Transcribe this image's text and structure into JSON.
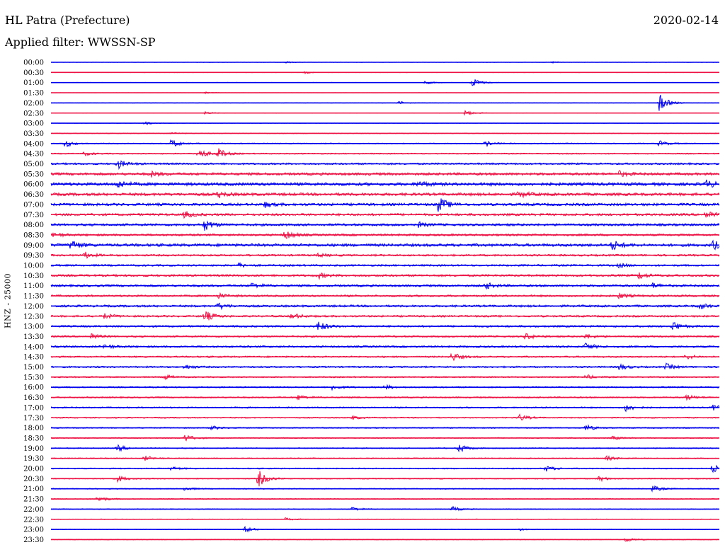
{
  "header": {
    "station": "HL Patra (Prefecture)",
    "date": "2020-02-14",
    "filter_label": "Applied filter:",
    "filter_name": "WWSSN-SP",
    "channel_label": "HNZ - 25000"
  },
  "colors": {
    "trace_a": "#0000ee",
    "trace_b": "#ee1144",
    "background": "#ffffff",
    "text": "#000000"
  },
  "chart_data": {
    "type": "line",
    "title": "HL Patra (Prefecture)",
    "subtitle": "Applied filter: WWSSN-SP",
    "ylabel": "HNZ - 25000",
    "xlabel": "",
    "rows": [
      {
        "label": "00:00",
        "color": "trace_a",
        "level": 0.15,
        "events": [
          {
            "t": 0.35,
            "a": 0.3
          },
          {
            "t": 0.75,
            "a": 0.3
          }
        ]
      },
      {
        "label": "00:30",
        "color": "trace_b",
        "level": 0.2,
        "events": [
          {
            "t": 0.38,
            "a": 0.3
          }
        ]
      },
      {
        "label": "01:00",
        "color": "trace_a",
        "level": 0.2,
        "events": [
          {
            "t": 0.56,
            "a": 0.5
          },
          {
            "t": 0.63,
            "a": 1.6
          }
        ]
      },
      {
        "label": "01:30",
        "color": "trace_b",
        "level": 0.12,
        "events": [
          {
            "t": 0.23,
            "a": 0.3
          }
        ]
      },
      {
        "label": "02:00",
        "color": "trace_a",
        "level": 0.2,
        "events": [
          {
            "t": 0.52,
            "a": 0.5
          },
          {
            "t": 0.91,
            "a": 3.0
          }
        ]
      },
      {
        "label": "02:30",
        "color": "trace_b",
        "level": 0.2,
        "events": [
          {
            "t": 0.23,
            "a": 0.4
          },
          {
            "t": 0.62,
            "a": 0.8
          }
        ]
      },
      {
        "label": "03:00",
        "color": "trace_a",
        "level": 0.15,
        "events": [
          {
            "t": 0.14,
            "a": 0.6
          }
        ]
      },
      {
        "label": "03:30",
        "color": "trace_b",
        "level": 0.3,
        "events": [
          {
            "t": 0.18,
            "a": 0.3
          }
        ]
      },
      {
        "label": "04:00",
        "color": "trace_a",
        "level": 0.45,
        "events": [
          {
            "t": 0.02,
            "a": 1.2
          },
          {
            "t": 0.18,
            "a": 1.4
          },
          {
            "t": 0.65,
            "a": 0.8
          },
          {
            "t": 0.91,
            "a": 0.9
          }
        ]
      },
      {
        "label": "04:30",
        "color": "trace_b",
        "level": 0.5,
        "events": [
          {
            "t": 0.22,
            "a": 1.8
          },
          {
            "t": 0.25,
            "a": 1.6
          },
          {
            "t": 0.05,
            "a": 0.6
          }
        ]
      },
      {
        "label": "05:00",
        "color": "trace_a",
        "level": 0.8,
        "events": [
          {
            "t": 0.1,
            "a": 1.4
          }
        ]
      },
      {
        "label": "05:30",
        "color": "trace_b",
        "level": 1.1,
        "events": [
          {
            "t": 0.15,
            "a": 0.8
          },
          {
            "t": 0.85,
            "a": 0.8
          }
        ]
      },
      {
        "label": "06:00",
        "color": "trace_a",
        "level": 1.3,
        "events": [
          {
            "t": 0.1,
            "a": 1.2
          },
          {
            "t": 0.55,
            "a": 0.9
          },
          {
            "t": 0.98,
            "a": 1.2
          }
        ]
      },
      {
        "label": "06:30",
        "color": "trace_b",
        "level": 1.2,
        "events": [
          {
            "t": 0.25,
            "a": 1.0
          },
          {
            "t": 0.7,
            "a": 0.9
          }
        ]
      },
      {
        "label": "07:00",
        "color": "trace_a",
        "level": 1.1,
        "events": [
          {
            "t": 0.58,
            "a": 2.5
          },
          {
            "t": 0.32,
            "a": 0.8
          }
        ]
      },
      {
        "label": "07:30",
        "color": "trace_b",
        "level": 1.0,
        "events": [
          {
            "t": 0.2,
            "a": 1.0
          },
          {
            "t": 0.98,
            "a": 1.4
          }
        ]
      },
      {
        "label": "08:00",
        "color": "trace_a",
        "level": 1.0,
        "events": [
          {
            "t": 0.23,
            "a": 1.8
          },
          {
            "t": 0.55,
            "a": 0.7
          }
        ]
      },
      {
        "label": "08:30",
        "color": "trace_b",
        "level": 0.9,
        "events": [
          {
            "t": 0.35,
            "a": 1.4
          },
          {
            "t": 0.0,
            "a": 1.0
          }
        ]
      },
      {
        "label": "09:00",
        "color": "trace_a",
        "level": 1.2,
        "events": [
          {
            "t": 0.03,
            "a": 1.6
          },
          {
            "t": 0.84,
            "a": 1.6
          },
          {
            "t": 0.99,
            "a": 1.4
          }
        ]
      },
      {
        "label": "09:30",
        "color": "trace_b",
        "level": 0.8,
        "events": [
          {
            "t": 0.05,
            "a": 1.0
          },
          {
            "t": 0.4,
            "a": 0.5
          }
        ]
      },
      {
        "label": "10:00",
        "color": "trace_a",
        "level": 0.8,
        "events": [
          {
            "t": 0.28,
            "a": 0.6
          },
          {
            "t": 0.85,
            "a": 0.6
          }
        ]
      },
      {
        "label": "10:30",
        "color": "trace_b",
        "level": 0.9,
        "events": [
          {
            "t": 0.4,
            "a": 0.8
          },
          {
            "t": 0.88,
            "a": 1.0
          }
        ]
      },
      {
        "label": "11:00",
        "color": "trace_a",
        "level": 0.9,
        "events": [
          {
            "t": 0.3,
            "a": 0.9
          },
          {
            "t": 0.65,
            "a": 1.0
          },
          {
            "t": 0.9,
            "a": 0.8
          }
        ]
      },
      {
        "label": "11:30",
        "color": "trace_b",
        "level": 0.8,
        "events": [
          {
            "t": 0.25,
            "a": 0.8
          },
          {
            "t": 0.85,
            "a": 0.8
          }
        ]
      },
      {
        "label": "12:00",
        "color": "trace_a",
        "level": 0.9,
        "events": [
          {
            "t": 0.25,
            "a": 1.0
          },
          {
            "t": 0.97,
            "a": 1.0
          }
        ]
      },
      {
        "label": "12:30",
        "color": "trace_b",
        "level": 0.8,
        "events": [
          {
            "t": 0.23,
            "a": 1.8
          },
          {
            "t": 0.36,
            "a": 1.0
          },
          {
            "t": 0.08,
            "a": 0.8
          }
        ]
      },
      {
        "label": "13:00",
        "color": "trace_a",
        "level": 0.8,
        "events": [
          {
            "t": 0.4,
            "a": 1.6
          },
          {
            "t": 0.93,
            "a": 1.6
          }
        ]
      },
      {
        "label": "13:30",
        "color": "trace_b",
        "level": 0.7,
        "events": [
          {
            "t": 0.06,
            "a": 1.0
          },
          {
            "t": 0.71,
            "a": 1.0
          },
          {
            "t": 0.8,
            "a": 0.8
          }
        ]
      },
      {
        "label": "14:00",
        "color": "trace_a",
        "level": 0.8,
        "events": [
          {
            "t": 0.08,
            "a": 0.8
          },
          {
            "t": 0.8,
            "a": 1.1
          }
        ]
      },
      {
        "label": "14:30",
        "color": "trace_b",
        "level": 0.7,
        "events": [
          {
            "t": 0.6,
            "a": 1.4
          },
          {
            "t": 0.95,
            "a": 0.8
          }
        ]
      },
      {
        "label": "15:00",
        "color": "trace_a",
        "level": 0.7,
        "events": [
          {
            "t": 0.2,
            "a": 0.8
          },
          {
            "t": 0.85,
            "a": 1.0
          },
          {
            "t": 0.92,
            "a": 1.0
          }
        ]
      },
      {
        "label": "15:30",
        "color": "trace_b",
        "level": 0.6,
        "events": [
          {
            "t": 0.17,
            "a": 0.8
          },
          {
            "t": 0.8,
            "a": 0.7
          }
        ]
      },
      {
        "label": "16:00",
        "color": "trace_a",
        "level": 0.6,
        "events": [
          {
            "t": 0.42,
            "a": 0.8
          },
          {
            "t": 0.5,
            "a": 0.7
          }
        ]
      },
      {
        "label": "16:30",
        "color": "trace_b",
        "level": 0.6,
        "events": [
          {
            "t": 0.37,
            "a": 0.8
          },
          {
            "t": 0.95,
            "a": 0.9
          }
        ]
      },
      {
        "label": "17:00",
        "color": "trace_a",
        "level": 0.6,
        "events": [
          {
            "t": 0.86,
            "a": 1.2
          },
          {
            "t": 0.99,
            "a": 0.9
          }
        ]
      },
      {
        "label": "17:30",
        "color": "trace_b",
        "level": 0.5,
        "events": [
          {
            "t": 0.7,
            "a": 1.2
          },
          {
            "t": 0.45,
            "a": 0.6
          }
        ]
      },
      {
        "label": "18:00",
        "color": "trace_a",
        "level": 0.5,
        "events": [
          {
            "t": 0.8,
            "a": 1.0
          },
          {
            "t": 0.24,
            "a": 0.6
          }
        ]
      },
      {
        "label": "18:30",
        "color": "trace_b",
        "level": 0.45,
        "events": [
          {
            "t": 0.2,
            "a": 1.2
          },
          {
            "t": 0.84,
            "a": 0.6
          }
        ]
      },
      {
        "label": "19:00",
        "color": "trace_a",
        "level": 0.45,
        "events": [
          {
            "t": 0.1,
            "a": 1.0
          },
          {
            "t": 0.61,
            "a": 1.4
          }
        ]
      },
      {
        "label": "19:30",
        "color": "trace_b",
        "level": 0.45,
        "events": [
          {
            "t": 0.14,
            "a": 0.8
          },
          {
            "t": 0.83,
            "a": 0.8
          }
        ]
      },
      {
        "label": "20:00",
        "color": "trace_a",
        "level": 0.5,
        "events": [
          {
            "t": 0.74,
            "a": 0.9
          },
          {
            "t": 0.99,
            "a": 1.4
          },
          {
            "t": 0.18,
            "a": 0.6
          }
        ]
      },
      {
        "label": "20:30",
        "color": "trace_b",
        "level": 0.45,
        "events": [
          {
            "t": 0.31,
            "a": 2.8
          },
          {
            "t": 0.1,
            "a": 1.0
          },
          {
            "t": 0.82,
            "a": 0.8
          }
        ]
      },
      {
        "label": "21:00",
        "color": "trace_a",
        "level": 0.4,
        "events": [
          {
            "t": 0.9,
            "a": 1.0
          },
          {
            "t": 0.2,
            "a": 0.6
          }
        ]
      },
      {
        "label": "21:30",
        "color": "trace_b",
        "level": 0.4,
        "events": [
          {
            "t": 0.07,
            "a": 1.0
          }
        ]
      },
      {
        "label": "22:00",
        "color": "trace_a",
        "level": 0.35,
        "events": [
          {
            "t": 0.45,
            "a": 0.7
          },
          {
            "t": 0.6,
            "a": 0.8
          }
        ]
      },
      {
        "label": "22:30",
        "color": "trace_b",
        "level": 0.3,
        "events": [
          {
            "t": 0.35,
            "a": 0.4
          }
        ]
      },
      {
        "label": "23:00",
        "color": "trace_a",
        "level": 0.3,
        "events": [
          {
            "t": 0.29,
            "a": 0.9
          },
          {
            "t": 0.7,
            "a": 0.4
          }
        ]
      },
      {
        "label": "23:30",
        "color": "trace_b",
        "level": 0.3,
        "events": [
          {
            "t": 0.86,
            "a": 0.8
          }
        ]
      }
    ]
  }
}
